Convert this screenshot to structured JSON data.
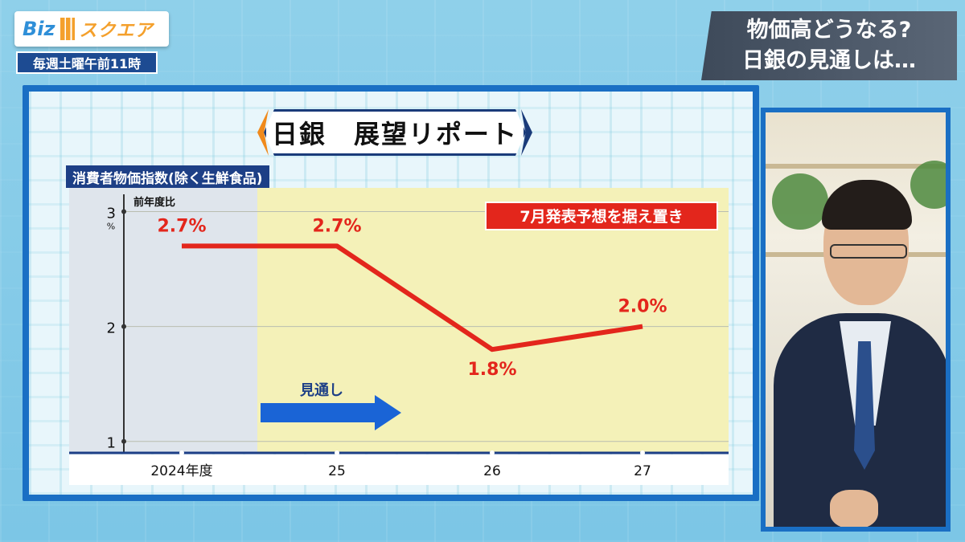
{
  "logo": {
    "text1": "Biz",
    "text2": "スクエア"
  },
  "schedule": "毎週土曜午前11時",
  "headline": {
    "line1": "物価高どうなる?",
    "line2": "日銀の見通しは…"
  },
  "panel": {
    "title": "日銀　展望リポート",
    "subtitle": "消費者物価指数(除く生鮮食品)",
    "unit_label": "前年度比",
    "callout": "7月発表予想を据え置き",
    "arrow_label": "見通し",
    "y_unit": "%"
  },
  "colors": {
    "line": "#e3261c",
    "forecast_bg": "#f4f1b8",
    "actual_bg": "#dfe5ec",
    "arrow": "#1a64d6",
    "callout_bg": "#e3261c"
  },
  "chart_data": {
    "type": "line",
    "title": "日銀　展望リポート",
    "subtitle": "消費者物価指数(除く生鮮食品)",
    "categories": [
      "2024年度",
      "25",
      "26",
      "27"
    ],
    "series": [
      {
        "values": [
          2.7,
          2.7,
          1.8,
          2.0
        ]
      }
    ],
    "data_labels": [
      "2.7%",
      "2.7%",
      "1.8%",
      "2.0%"
    ],
    "yticks": [
      1,
      2,
      3
    ],
    "ylim": [
      0.9,
      3.15
    ],
    "ylabel": "前年度比",
    "forecast_start_category": "25",
    "grid": true
  }
}
